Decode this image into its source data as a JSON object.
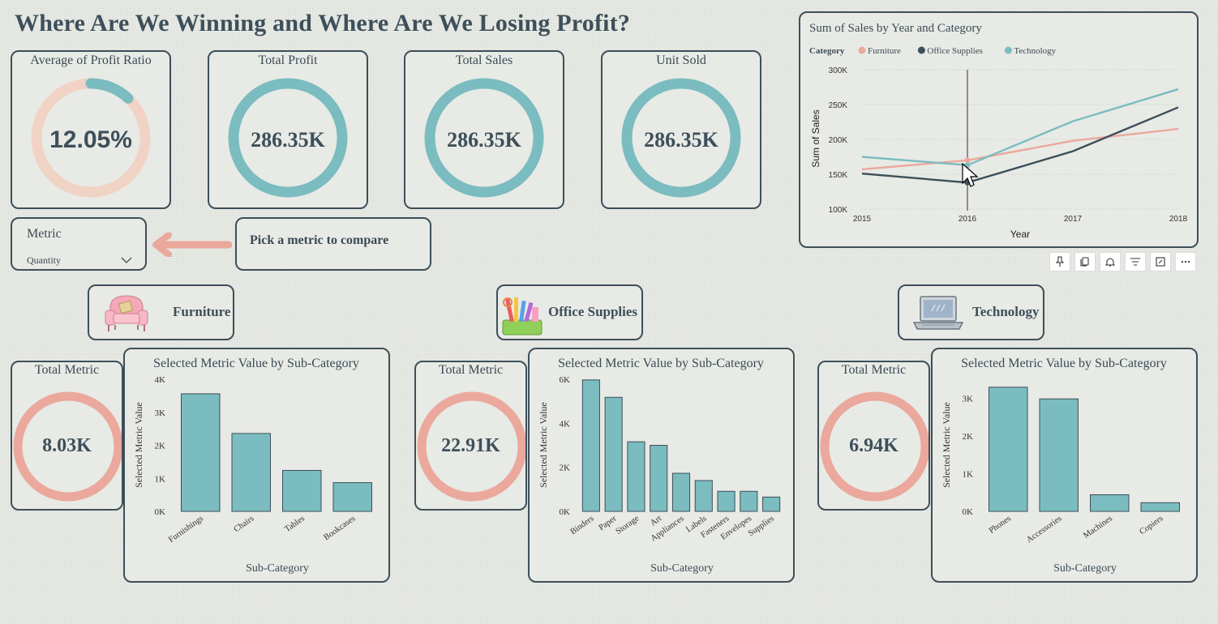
{
  "page_title": "Where Are We Winning and Where Are We Losing Profit?",
  "kpis": {
    "profit_ratio": {
      "title": "Average of Profit Ratio",
      "value": "12.05%",
      "fill_fraction": 0.1205
    },
    "total_profit": {
      "title": "Total Profit",
      "value": "286.35K"
    },
    "total_sales": {
      "title": "Total Sales",
      "value": "286.35K"
    },
    "unit_sold": {
      "title": "Unit Sold",
      "value": "286.35K"
    }
  },
  "metric_slicer": {
    "title": "Metric",
    "selected": "Quantity"
  },
  "hint_text": "Pick a metric to compare",
  "toolbar": {
    "icons": [
      "pin-icon",
      "copy-icon",
      "bell-icon",
      "filter-icon",
      "focus-mode-icon",
      "more-options-icon"
    ]
  },
  "colors": {
    "teal": "#7bbcc0",
    "salmon": "#eba89c",
    "dark": "#3d4f5a",
    "ring_light": "#f1d3c6"
  },
  "categories": [
    {
      "name": "Furniture",
      "icon": "armchair-icon",
      "total_title": "Total Metric",
      "total_value": "8.03K",
      "chart_title": "Selected Metric Value by Sub-Category"
    },
    {
      "name": "Office Supplies",
      "icon": "pencil-cup-icon",
      "total_title": "Total Metric",
      "total_value": "22.91K",
      "chart_title": "Selected Metric Value by Sub-Category"
    },
    {
      "name": "Technology",
      "icon": "laptop-icon",
      "total_title": "Total Metric",
      "total_value": "6.94K",
      "chart_title": "Selected Metric Value by Sub-Category"
    }
  ],
  "chart_data": [
    {
      "type": "line",
      "title": "Sum of Sales by Year and Category",
      "legend_title": "Category",
      "legend_position": "top-left",
      "xlabel": "Year",
      "ylabel": "Sum of Sales",
      "x": [
        2015,
        2016,
        2017,
        2018
      ],
      "ylim": [
        100000,
        300000
      ],
      "yticks": [
        "100K",
        "150K",
        "200K",
        "250K",
        "300K"
      ],
      "grid": true,
      "series": [
        {
          "name": "Furniture",
          "color": "#eba89c",
          "values": [
            157000,
            170000,
            198000,
            215000
          ]
        },
        {
          "name": "Office Supplies",
          "color": "#3d4f5a",
          "values": [
            151000,
            138000,
            183000,
            246000
          ]
        },
        {
          "name": "Technology",
          "color": "#7bbcc0",
          "values": [
            175000,
            163000,
            226000,
            272000
          ]
        }
      ]
    },
    {
      "type": "bar",
      "title": "Selected Metric Value by Sub-Category",
      "xlabel": "Sub-Category",
      "ylabel": "Selected Metric Value",
      "categories": [
        "Furnishings",
        "Chairs",
        "Tables",
        "Bookcases"
      ],
      "values": [
        3560,
        2360,
        1240,
        870
      ],
      "ylim": [
        0,
        4000
      ],
      "yticks": [
        "0K",
        "1K",
        "2K",
        "3K",
        "4K"
      ]
    },
    {
      "type": "bar",
      "title": "Selected Metric Value by Sub-Category",
      "xlabel": "Sub-Category",
      "ylabel": "Selected Metric Value",
      "categories": [
        "Binders",
        "Paper",
        "Storage",
        "Art",
        "Appliances",
        "Labels",
        "Fasteners",
        "Envelopes",
        "Supplies"
      ],
      "values": [
        5970,
        5180,
        3160,
        3000,
        1730,
        1400,
        910,
        910,
        650
      ],
      "ylim": [
        0,
        6000
      ],
      "yticks": [
        "0K",
        "2K",
        "4K",
        "6K"
      ]
    },
    {
      "type": "bar",
      "title": "Selected Metric Value by Sub-Category",
      "xlabel": "Sub-Category",
      "ylabel": "Selected Metric Value",
      "categories": [
        "Phones",
        "Accessories",
        "Machines",
        "Copiers"
      ],
      "values": [
        3290,
        2980,
        440,
        230
      ],
      "ylim": [
        0,
        3500
      ],
      "yticks": [
        "0K",
        "1K",
        "2K",
        "3K"
      ]
    }
  ]
}
